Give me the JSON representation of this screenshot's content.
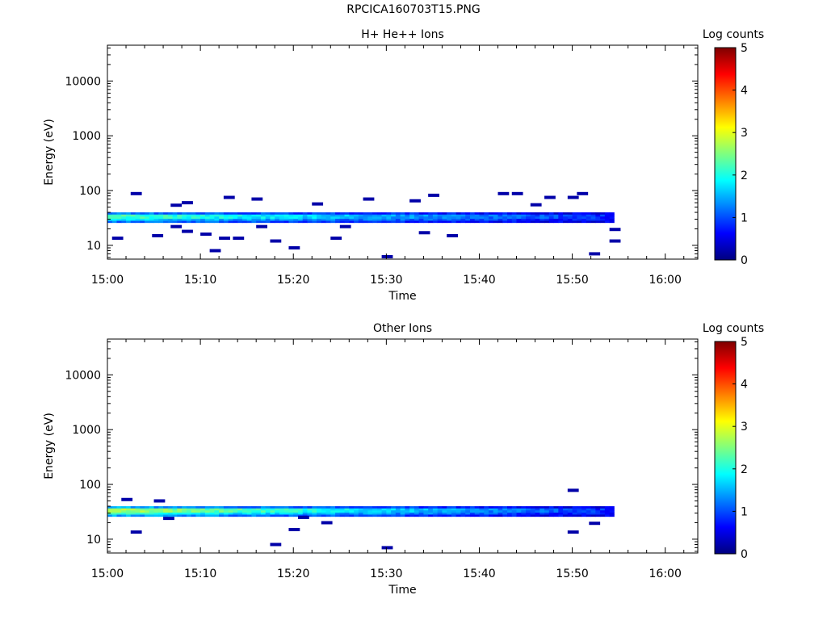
{
  "figure_title": "RPCICA160703T15.PNG",
  "colors": {
    "colormap": [
      "#00007f",
      "#0000ff",
      "#007fff",
      "#00ffff",
      "#7fff7f",
      "#ffff00",
      "#ff7f00",
      "#ff0000",
      "#7f0000"
    ]
  },
  "chart_data": [
    {
      "type": "heatmap",
      "title": "H+ He++ Ions",
      "xlabel": "Time",
      "ylabel": "Energy (eV)",
      "colorbar_label": "Log counts",
      "colorbar_ticks": [
        "0",
        "1",
        "2",
        "3",
        "4",
        "5"
      ],
      "colorbar_range": [
        0,
        5
      ],
      "x_unit": "minutes after 15:00",
      "xlim": [
        0,
        63.5
      ],
      "x_ticks": [
        {
          "value": 0,
          "label": "15:00"
        },
        {
          "value": 10,
          "label": "15:10"
        },
        {
          "value": 20,
          "label": "15:20"
        },
        {
          "value": 30,
          "label": "15:30"
        },
        {
          "value": 40,
          "label": "15:40"
        },
        {
          "value": 50,
          "label": "15:50"
        },
        {
          "value": 60,
          "label": "16:00"
        }
      ],
      "y_scale": "log",
      "ylim": [
        5.6,
        45000
      ],
      "y_ticks": [
        {
          "value": 10,
          "label": "10"
        },
        {
          "value": 100,
          "label": "100"
        },
        {
          "value": 1000,
          "label": "1000"
        },
        {
          "value": 10000,
          "label": "10000"
        }
      ],
      "band": {
        "t_start": 0,
        "t_end": 54.5,
        "e_low": 26,
        "e_high": 40,
        "peak_log_counts": 2.2,
        "decay_to": 0.8
      },
      "sparse_cells": [
        [
          0.5,
          13.5,
          0.2
        ],
        [
          2.5,
          88,
          0.2
        ],
        [
          4.8,
          15,
          0.2
        ],
        [
          6.8,
          22,
          0.2
        ],
        [
          6.8,
          54,
          0.2
        ],
        [
          8.0,
          60,
          0.2
        ],
        [
          8.0,
          18,
          0.2
        ],
        [
          10.0,
          16,
          0.2
        ],
        [
          11.0,
          8,
          0.2
        ],
        [
          12.0,
          13.5,
          0.2
        ],
        [
          12.5,
          75,
          0.2
        ],
        [
          13.5,
          13.5,
          0.2
        ],
        [
          15.5,
          70,
          0.2
        ],
        [
          16.0,
          22,
          0.2
        ],
        [
          17.5,
          12,
          0.2
        ],
        [
          19.5,
          9,
          0.2
        ],
        [
          22.0,
          57,
          0.2
        ],
        [
          24.0,
          13.5,
          0.2
        ],
        [
          25.0,
          22,
          0.2
        ],
        [
          27.5,
          70,
          0.2
        ],
        [
          29.5,
          6.2,
          0.2
        ],
        [
          32.5,
          65,
          0.2
        ],
        [
          33.5,
          17,
          0.2
        ],
        [
          34.5,
          82,
          0.2
        ],
        [
          36.5,
          15,
          0.2
        ],
        [
          42.0,
          88,
          0.2
        ],
        [
          43.5,
          88,
          0.2
        ],
        [
          45.5,
          55,
          0.2
        ],
        [
          47.0,
          75,
          0.2
        ],
        [
          49.5,
          75,
          0.2
        ],
        [
          50.5,
          88,
          0.2
        ],
        [
          51.8,
          7,
          0.2
        ],
        [
          54.0,
          19.5,
          0.2
        ],
        [
          54.0,
          12,
          0.2
        ]
      ]
    },
    {
      "type": "heatmap",
      "title": "Other Ions",
      "xlabel": "Time",
      "ylabel": "Energy (eV)",
      "colorbar_label": "Log counts",
      "colorbar_ticks": [
        "0",
        "1",
        "2",
        "3",
        "4",
        "5"
      ],
      "colorbar_range": [
        0,
        5
      ],
      "x_unit": "minutes after 15:00",
      "xlim": [
        0,
        63.5
      ],
      "x_ticks": [
        {
          "value": 0,
          "label": "15:00"
        },
        {
          "value": 10,
          "label": "15:10"
        },
        {
          "value": 20,
          "label": "15:20"
        },
        {
          "value": 30,
          "label": "15:30"
        },
        {
          "value": 40,
          "label": "15:40"
        },
        {
          "value": 50,
          "label": "15:50"
        },
        {
          "value": 60,
          "label": "16:00"
        }
      ],
      "y_scale": "log",
      "ylim": [
        5.6,
        45000
      ],
      "y_ticks": [
        {
          "value": 10,
          "label": "10"
        },
        {
          "value": 100,
          "label": "100"
        },
        {
          "value": 1000,
          "label": "1000"
        },
        {
          "value": 10000,
          "label": "10000"
        }
      ],
      "band": {
        "t_start": 0,
        "t_end": 54.5,
        "e_low": 26,
        "e_high": 40,
        "peak_log_counts": 2.7,
        "decay_to": 0.8
      },
      "sparse_cells": [
        [
          1.5,
          53,
          0.2
        ],
        [
          2.5,
          13.5,
          0.2
        ],
        [
          5.0,
          50,
          0.2
        ],
        [
          6.0,
          24,
          0.2
        ],
        [
          17.5,
          8,
          0.2
        ],
        [
          19.5,
          15,
          0.2
        ],
        [
          20.5,
          25,
          0.2
        ],
        [
          23.0,
          20,
          0.2
        ],
        [
          29.5,
          7,
          0.2
        ],
        [
          49.5,
          78,
          0.2
        ],
        [
          49.5,
          13.5,
          0.2
        ],
        [
          51.8,
          19.5,
          0.2
        ]
      ]
    }
  ]
}
